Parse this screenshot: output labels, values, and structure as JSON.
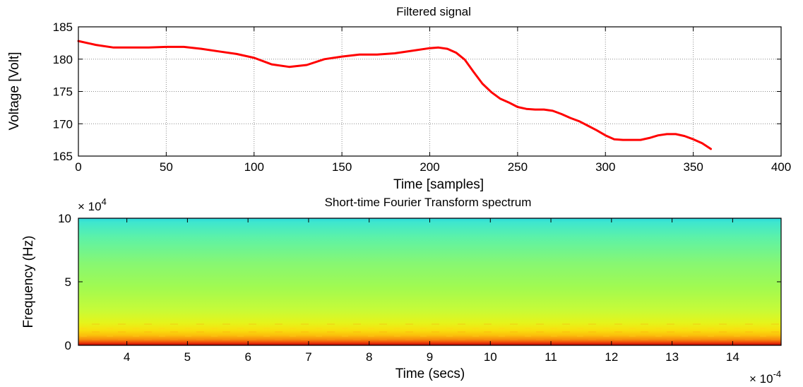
{
  "chart_data": [
    {
      "type": "line",
      "title": "Filtered signal",
      "xlabel": "Time [samples]",
      "ylabel": "Voltage [Volt]",
      "xlim": [
        0,
        400
      ],
      "ylim": [
        165,
        185
      ],
      "xticks": [
        0,
        50,
        100,
        150,
        200,
        250,
        300,
        350,
        400
      ],
      "yticks": [
        165,
        170,
        175,
        180,
        185
      ],
      "grid": true,
      "series": [
        {
          "color": "#ff0000",
          "x": [
            0,
            10,
            20,
            30,
            40,
            50,
            60,
            70,
            80,
            90,
            100,
            110,
            120,
            130,
            140,
            150,
            160,
            170,
            180,
            190,
            200,
            205,
            210,
            215,
            220,
            225,
            230,
            235,
            240,
            245,
            250,
            255,
            260,
            265,
            270,
            275,
            280,
            285,
            290,
            295,
            300,
            305,
            310,
            315,
            320,
            325,
            330,
            335,
            340,
            345,
            350,
            355,
            360
          ],
          "y": [
            182.8,
            182.2,
            181.8,
            181.8,
            181.8,
            181.9,
            181.9,
            181.6,
            181.2,
            180.8,
            180.2,
            179.2,
            178.8,
            179.1,
            180.0,
            180.4,
            180.7,
            180.7,
            180.9,
            181.3,
            181.7,
            181.8,
            181.6,
            181.0,
            179.9,
            178.0,
            176.2,
            174.9,
            173.9,
            173.3,
            172.6,
            172.3,
            172.2,
            172.2,
            172.0,
            171.5,
            170.9,
            170.4,
            169.7,
            169.0,
            168.2,
            167.6,
            167.5,
            167.5,
            167.5,
            167.8,
            168.2,
            168.4,
            168.4,
            168.1,
            167.6,
            167.0,
            166.1
          ]
        }
      ]
    },
    {
      "type": "heatmap",
      "title": "Short-time Fourier Transform spectrum",
      "xlabel": "Time (secs)",
      "ylabel": "Frequency (Hz)",
      "xlim": [
        3.2,
        14.8
      ],
      "ylim": [
        0,
        10
      ],
      "xticks": [
        4,
        5,
        6,
        7,
        8,
        9,
        10,
        11,
        12,
        13,
        14
      ],
      "yticks": [
        0,
        5,
        10
      ],
      "x_multiplier": "× 10",
      "x_exponent": "-4",
      "y_multiplier": "× 10",
      "y_exponent": "4",
      "colormap": "jet"
    }
  ]
}
